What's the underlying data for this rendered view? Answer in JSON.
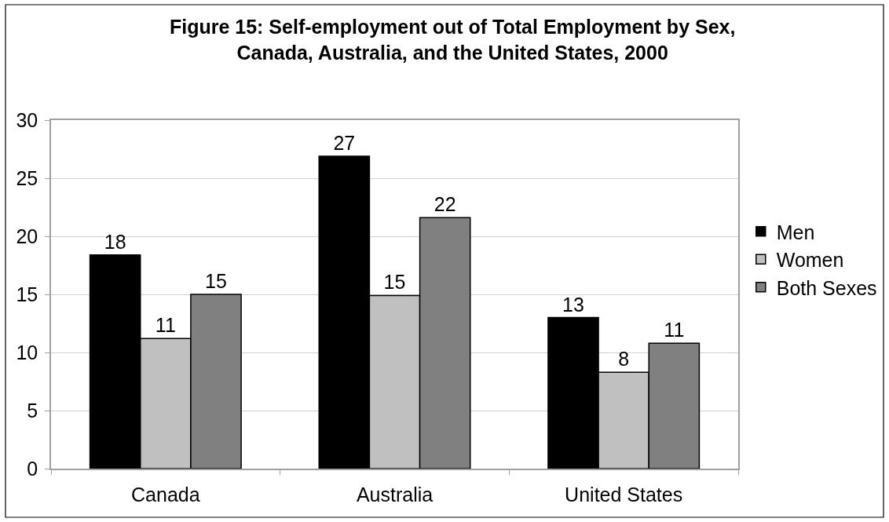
{
  "chart_data": {
    "type": "bar",
    "title": "Figure 15: Self-employment out of Total Employment by Sex, Canada, Australia, and the United States, 2000",
    "categories": [
      "Canada",
      "Australia",
      "United States"
    ],
    "series": [
      {
        "name": "Men",
        "color": "#000000",
        "values": [
          18.4,
          26.9,
          13.0
        ],
        "value_labels": [
          "18",
          "27",
          "13"
        ]
      },
      {
        "name": "Women",
        "color": "#c0c0c0",
        "values": [
          11.2,
          14.9,
          8.3
        ],
        "value_labels": [
          "11",
          "15",
          "8"
        ]
      },
      {
        "name": "Both Sexes",
        "color": "#808080",
        "values": [
          15.0,
          21.6,
          10.8
        ],
        "value_labels": [
          "15",
          "22",
          "11"
        ]
      }
    ],
    "ylim": [
      0,
      30
    ],
    "yticks": [
      0,
      5,
      10,
      15,
      20,
      25,
      30
    ],
    "grid": "y",
    "legend": "right"
  }
}
